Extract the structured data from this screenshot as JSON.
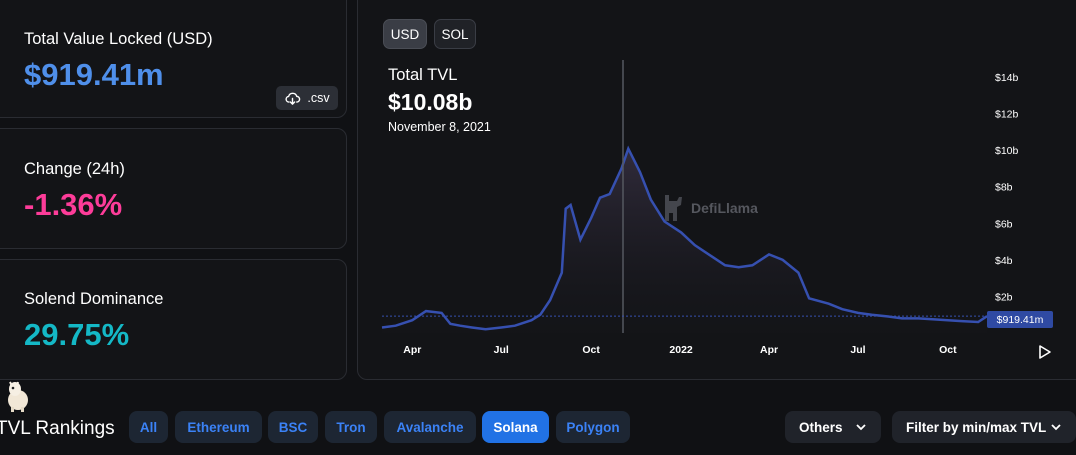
{
  "stats": {
    "tvl_label": "Total Value Locked (USD)",
    "tvl_value": "$919.41m",
    "csv_label": ".csv",
    "change_label": "Change (24h)",
    "change_value": "-1.36%",
    "dominance_label": "Solend Dominance",
    "dominance_value": "29.75%"
  },
  "chart_controls": {
    "usd_label": "USD",
    "sol_label": "SOL"
  },
  "chart_header": {
    "title": "Total TVL",
    "value": "$10.08b",
    "date": "November 8, 2021"
  },
  "watermark": "DefiLlama",
  "current_value_label": "$919.41m",
  "chart_data": {
    "type": "area",
    "ylabel": "",
    "xlabel": "",
    "ylim": [
      0,
      15
    ],
    "y_ticks": [
      "$2b",
      "$4b",
      "$6b",
      "$8b",
      "$10b",
      "$12b",
      "$14b"
    ],
    "x_ticks": [
      "Apr",
      "Jul",
      "Oct",
      "2022",
      "Apr",
      "Jul",
      "Oct"
    ],
    "series": [
      {
        "name": "Total TVL",
        "x": [
          "2021-03-01",
          "2021-03-15",
          "2021-04-01",
          "2021-04-15",
          "2021-05-01",
          "2021-05-10",
          "2021-05-20",
          "2021-06-01",
          "2021-06-15",
          "2021-07-01",
          "2021-07-15",
          "2021-08-01",
          "2021-08-10",
          "2021-08-20",
          "2021-09-01",
          "2021-09-05",
          "2021-09-10",
          "2021-09-20",
          "2021-10-01",
          "2021-10-10",
          "2021-10-20",
          "2021-11-01",
          "2021-11-08",
          "2021-11-20",
          "2021-12-01",
          "2021-12-15",
          "2022-01-01",
          "2022-01-15",
          "2022-02-01",
          "2022-02-15",
          "2022-03-01",
          "2022-03-15",
          "2022-04-01",
          "2022-04-15",
          "2022-05-01",
          "2022-05-12",
          "2022-06-01",
          "2022-06-15",
          "2022-07-01",
          "2022-07-15",
          "2022-08-01",
          "2022-08-15",
          "2022-09-01",
          "2022-09-15",
          "2022-10-01",
          "2022-10-15",
          "2022-11-01",
          "2022-11-10"
        ],
        "values": [
          0.3,
          0.4,
          0.7,
          1.2,
          1.1,
          0.5,
          0.4,
          0.3,
          0.2,
          0.3,
          0.4,
          0.7,
          1.0,
          1.8,
          3.3,
          6.8,
          7.0,
          5.1,
          6.3,
          7.4,
          7.6,
          9.0,
          10.08,
          8.8,
          7.3,
          6.1,
          5.5,
          4.8,
          4.2,
          3.7,
          3.6,
          3.7,
          4.3,
          4.0,
          3.3,
          1.9,
          1.6,
          1.3,
          1.1,
          1.0,
          0.9,
          0.8,
          0.8,
          0.75,
          0.7,
          0.65,
          0.6,
          0.92
        ]
      }
    ]
  },
  "rankings": {
    "title": "TVL Rankings",
    "chains": [
      "All",
      "Ethereum",
      "BSC",
      "Tron",
      "Avalanche",
      "Solana",
      "Polygon"
    ],
    "active_chain": "Solana",
    "others_label": "Others",
    "filter_label": "Filter by min/max TVL"
  },
  "colors": {
    "line": "#3650b0",
    "positive": "#4f8fea",
    "negative": "#fd3c99",
    "dominance": "#14b8c6",
    "active_tab": "#2172e5"
  }
}
